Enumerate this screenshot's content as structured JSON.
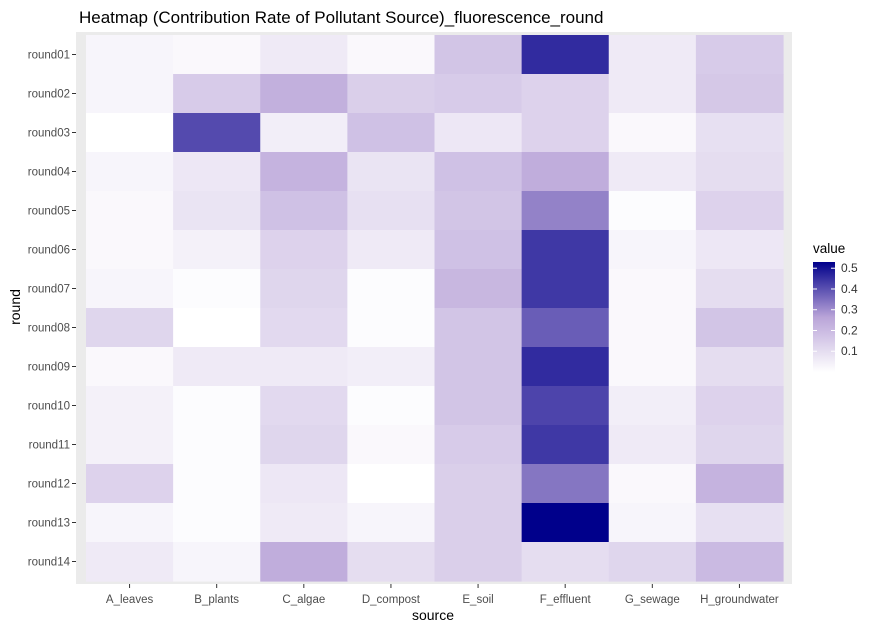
{
  "chart_data": {
    "type": "heatmap",
    "title": "Heatmap (Contribution Rate of Pollutant Source)_fluorescence_round",
    "xlabel": "source",
    "ylabel": "round",
    "x_categories": [
      "A_leaves",
      "B_plants",
      "C_algae",
      "D_compost",
      "E_soil",
      "F_effluent",
      "G_sewage",
      "H_groundwater"
    ],
    "y_categories": [
      "round01",
      "round02",
      "round03",
      "round04",
      "round05",
      "round06",
      "round07",
      "round08",
      "round09",
      "round10",
      "round11",
      "round12",
      "round13",
      "round14"
    ],
    "values": [
      [
        0.03,
        0.02,
        0.06,
        0.02,
        0.17,
        0.46,
        0.06,
        0.15
      ],
      [
        0.03,
        0.15,
        0.23,
        0.14,
        0.15,
        0.13,
        0.06,
        0.16
      ],
      [
        0.0,
        0.41,
        0.05,
        0.18,
        0.07,
        0.13,
        0.02,
        0.09
      ],
      [
        0.03,
        0.07,
        0.22,
        0.08,
        0.18,
        0.24,
        0.06,
        0.1
      ],
      [
        0.02,
        0.08,
        0.18,
        0.09,
        0.17,
        0.32,
        0.01,
        0.13
      ],
      [
        0.02,
        0.04,
        0.13,
        0.06,
        0.18,
        0.44,
        0.03,
        0.07
      ],
      [
        0.03,
        0.01,
        0.12,
        0.01,
        0.21,
        0.44,
        0.02,
        0.1
      ],
      [
        0.12,
        0.0,
        0.11,
        0.01,
        0.17,
        0.38,
        0.02,
        0.17
      ],
      [
        0.02,
        0.06,
        0.06,
        0.05,
        0.17,
        0.46,
        0.02,
        0.1
      ],
      [
        0.04,
        0.01,
        0.11,
        0.01,
        0.17,
        0.42,
        0.05,
        0.13
      ],
      [
        0.04,
        0.01,
        0.12,
        0.02,
        0.15,
        0.44,
        0.06,
        0.12
      ],
      [
        0.13,
        0.01,
        0.07,
        0.0,
        0.14,
        0.34,
        0.02,
        0.22
      ],
      [
        0.03,
        0.01,
        0.06,
        0.03,
        0.14,
        0.53,
        0.03,
        0.09
      ],
      [
        0.06,
        0.03,
        0.24,
        0.1,
        0.14,
        0.1,
        0.12,
        0.2
      ]
    ],
    "legend": {
      "title": "value",
      "ticks": [
        "0.1",
        "0.2",
        "0.3",
        "0.4",
        "0.5"
      ],
      "tick_values": [
        0.1,
        0.2,
        0.3,
        0.4,
        0.5
      ],
      "position": "right",
      "range": [
        0,
        0.53
      ]
    },
    "colors": {
      "low": "#ffffff",
      "mid": "#b9a4d8",
      "high": "#00008b",
      "panel_background": "#ebebeb"
    }
  }
}
